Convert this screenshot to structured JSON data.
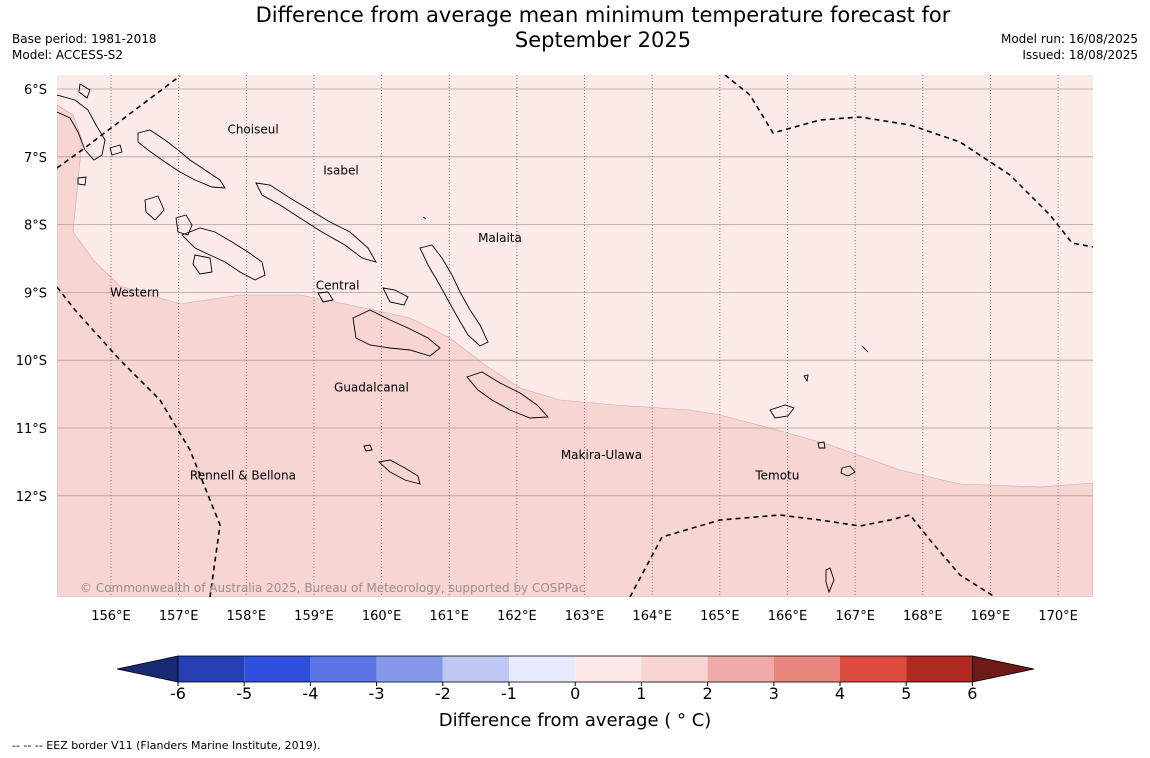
{
  "header": {
    "title_line1": "Difference from average mean minimum temperature forecast for",
    "title_line2": "September 2025",
    "base_period": "Base period: 1981-2018",
    "model": "Model: ACCESS-S2",
    "model_run": "Model run: 16/08/2025",
    "issued": "Issued: 18/08/2025"
  },
  "map": {
    "lon_range": [
      155.2,
      170.5
    ],
    "lat_range": [
      -13.5,
      -5.8
    ],
    "lat_ticks": [
      {
        "value": -6,
        "label": "6°S"
      },
      {
        "value": -7,
        "label": "7°S"
      },
      {
        "value": -8,
        "label": "8°S"
      },
      {
        "value": -9,
        "label": "9°S"
      },
      {
        "value": -10,
        "label": "10°S"
      },
      {
        "value": -11,
        "label": "11°S"
      },
      {
        "value": -12,
        "label": "12°S"
      }
    ],
    "lon_ticks": [
      {
        "value": 156,
        "label": "156°E"
      },
      {
        "value": 157,
        "label": "157°E"
      },
      {
        "value": 158,
        "label": "158°E"
      },
      {
        "value": 159,
        "label": "159°E"
      },
      {
        "value": 160,
        "label": "160°E"
      },
      {
        "value": 161,
        "label": "161°E"
      },
      {
        "value": 162,
        "label": "162°E"
      },
      {
        "value": 163,
        "label": "163°E"
      },
      {
        "value": 164,
        "label": "164°E"
      },
      {
        "value": 165,
        "label": "165°E"
      },
      {
        "value": 166,
        "label": "166°E"
      },
      {
        "value": 167,
        "label": "167°E"
      },
      {
        "value": 168,
        "label": "168°E"
      },
      {
        "value": 169,
        "label": "169°E"
      },
      {
        "value": 170,
        "label": "170°E"
      }
    ],
    "province_labels": [
      {
        "name": "Choiseul",
        "lon": 158.1,
        "lat": -6.6
      },
      {
        "name": "Isabel",
        "lon": 159.4,
        "lat": -7.2
      },
      {
        "name": "Malaita",
        "lon": 161.75,
        "lat": -8.2
      },
      {
        "name": "Western",
        "lon": 156.35,
        "lat": -9.0
      },
      {
        "name": "Central",
        "lon": 159.35,
        "lat": -8.9
      },
      {
        "name": "Guadalcanal",
        "lon": 159.85,
        "lat": -10.4
      },
      {
        "name": "Makira-Ulawa",
        "lon": 163.25,
        "lat": -11.4
      },
      {
        "name": "Rennell & Bellona",
        "lon": 157.95,
        "lat": -11.7
      },
      {
        "name": "Temotu",
        "lon": 165.85,
        "lat": -11.7
      }
    ],
    "anomaly_regions": [
      {
        "range": "0 to 1",
        "color": "#fbeae8"
      },
      {
        "range": "1 to 2",
        "color": "#f6d5d3"
      }
    ],
    "copyright": "© Commonwealth of Australia 2025, Bureau of Meteorology, supported by COSPPac"
  },
  "colorbar": {
    "ticks": [
      "-6",
      "-5",
      "-4",
      "-3",
      "-2",
      "-1",
      "0",
      "1",
      "2",
      "3",
      "4",
      "5",
      "6"
    ],
    "under_color": "#192a75",
    "colors": [
      "#2540b2",
      "#2f4fdc",
      "#5c73e4",
      "#8499ec",
      "#c0c7f4",
      "#e8ebfb",
      "#fbeae8",
      "#f6d5d3",
      "#eeaaa7",
      "#e8867f",
      "#dc4a40",
      "#ae2a22"
    ],
    "over_color": "#6e1a16",
    "label": "Difference from average ( ° C)"
  },
  "footnote": "--  --  -- EEZ border V11 (Flanders Marine Institute, 2019)."
}
